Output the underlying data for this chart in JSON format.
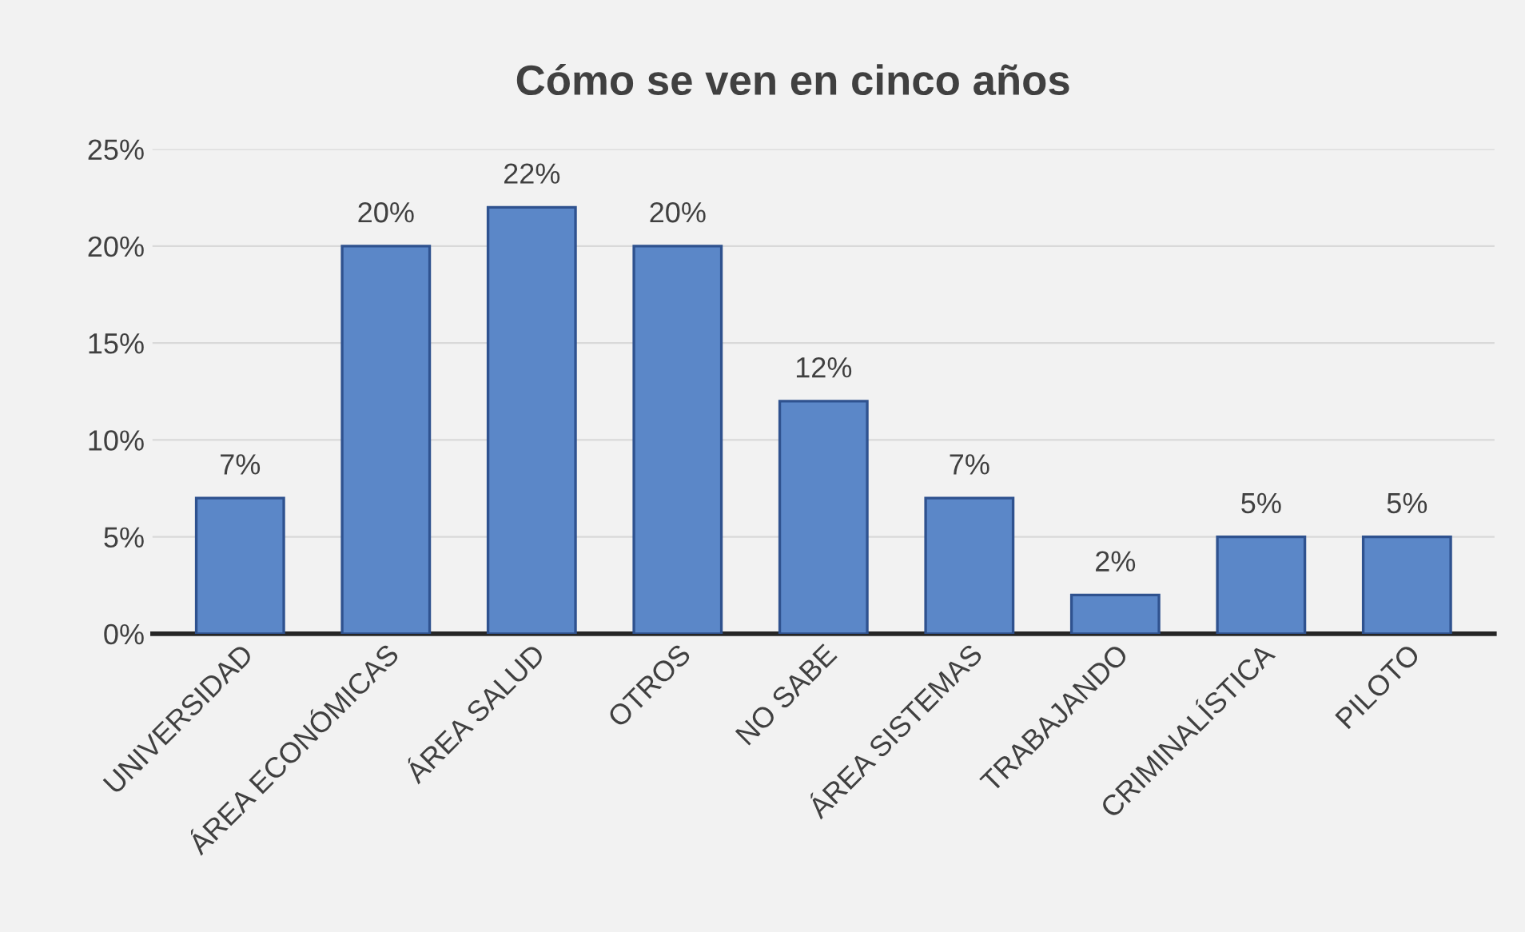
{
  "chart_data": {
    "type": "bar",
    "title": "Cómo se ven en cinco años",
    "categories": [
      "UNIVERSIDAD",
      "ÁREA ECONÓMICAS",
      "ÁREA SALUD",
      "OTROS",
      "NO SABE",
      "ÁREA SISTEMAS",
      "TRABAJANDO",
      "CRIMINALÍSTICA",
      "PILOTO"
    ],
    "values": [
      7,
      20,
      22,
      20,
      12,
      7,
      2,
      5,
      5
    ],
    "value_labels": [
      "7%",
      "20%",
      "22%",
      "20%",
      "12%",
      "7%",
      "2%",
      "5%",
      "5%"
    ],
    "color": "#5b87c8",
    "ylim": [
      0,
      25
    ],
    "yticks": [
      {
        "value": 0,
        "label": "0%"
      },
      {
        "value": 5,
        "label": "5%"
      },
      {
        "value": 10,
        "label": "10%"
      },
      {
        "value": 15,
        "label": "15%"
      },
      {
        "value": 20,
        "label": "20%"
      },
      {
        "value": 25,
        "label": "25%"
      }
    ],
    "grid": "y",
    "legend": false
  }
}
